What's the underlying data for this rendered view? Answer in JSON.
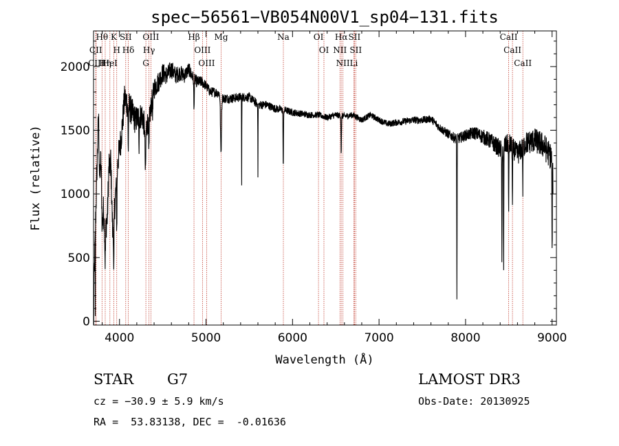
{
  "chart_data": {
    "type": "line",
    "title": "spec−56561−VB054N00V1_sp04−131.fits",
    "xlabel": "Wavelength (Å)",
    "ylabel": "Flux (relative)",
    "xlim": [
      3700,
      9050
    ],
    "ylim": [
      -30,
      2280
    ],
    "xticks": [
      4000,
      5000,
      6000,
      7000,
      8000,
      9000
    ],
    "xtick_labels": [
      "4000",
      "5000",
      "6000",
      "7000",
      "8000",
      "9000"
    ],
    "yticks": [
      0,
      500,
      1000,
      1500,
      2000
    ],
    "ytick_labels": [
      "0",
      "500",
      "1000",
      "1500",
      "2000"
    ],
    "continuum": [
      [
        3700,
        150
      ],
      [
        3730,
        950
      ],
      [
        3760,
        1700
      ],
      [
        3800,
        1050
      ],
      [
        3830,
        700
      ],
      [
        3860,
        820
      ],
      [
        3890,
        1500
      ],
      [
        3920,
        720
      ],
      [
        3950,
        950
      ],
      [
        3980,
        1250
      ],
      [
        4020,
        1450
      ],
      [
        4060,
        1750
      ],
      [
        4100,
        1700
      ],
      [
        4140,
        1650
      ],
      [
        4180,
        1580
      ],
      [
        4220,
        1600
      ],
      [
        4260,
        1620
      ],
      [
        4300,
        1500
      ],
      [
        4350,
        1620
      ],
      [
        4400,
        1830
      ],
      [
        4450,
        1880
      ],
      [
        4500,
        1950
      ],
      [
        4550,
        1930
      ],
      [
        4600,
        1980
      ],
      [
        4650,
        1930
      ],
      [
        4700,
        1950
      ],
      [
        4750,
        1930
      ],
      [
        4800,
        1980
      ],
      [
        4860,
        1900
      ],
      [
        4900,
        1880
      ],
      [
        4950,
        1880
      ],
      [
        5000,
        1850
      ],
      [
        5050,
        1800
      ],
      [
        5100,
        1800
      ],
      [
        5150,
        1790
      ],
      [
        5200,
        1750
      ],
      [
        5300,
        1750
      ],
      [
        5400,
        1760
      ],
      [
        5500,
        1760
      ],
      [
        5600,
        1700
      ],
      [
        5700,
        1700
      ],
      [
        5800,
        1670
      ],
      [
        5900,
        1660
      ],
      [
        6000,
        1640
      ],
      [
        6100,
        1630
      ],
      [
        6200,
        1620
      ],
      [
        6300,
        1620
      ],
      [
        6400,
        1600
      ],
      [
        6500,
        1620
      ],
      [
        6600,
        1610
      ],
      [
        6700,
        1620
      ],
      [
        6800,
        1580
      ],
      [
        6900,
        1620
      ],
      [
        7000,
        1580
      ],
      [
        7100,
        1550
      ],
      [
        7200,
        1560
      ],
      [
        7300,
        1570
      ],
      [
        7400,
        1580
      ],
      [
        7500,
        1580
      ],
      [
        7600,
        1590
      ],
      [
        7700,
        1520
      ],
      [
        7800,
        1470
      ],
      [
        7900,
        1430
      ],
      [
        8000,
        1460
      ],
      [
        8100,
        1480
      ],
      [
        8200,
        1450
      ],
      [
        8300,
        1410
      ],
      [
        8400,
        1350
      ],
      [
        8500,
        1400
      ],
      [
        8600,
        1310
      ],
      [
        8700,
        1400
      ],
      [
        8800,
        1420
      ],
      [
        8900,
        1380
      ],
      [
        8960,
        1320
      ],
      [
        9000,
        1280
      ],
      [
        9010,
        1100
      ]
    ],
    "noise": [
      [
        3700,
        120
      ],
      [
        4100,
        120
      ],
      [
        4500,
        80
      ],
      [
        5000,
        40
      ],
      [
        5600,
        35
      ],
      [
        6200,
        25
      ],
      [
        7000,
        25
      ],
      [
        7600,
        30
      ],
      [
        8000,
        45
      ],
      [
        8500,
        80
      ],
      [
        9010,
        110
      ]
    ],
    "absorption_features": [
      [
        3700,
        2,
        1000
      ],
      [
        3720,
        1,
        700
      ],
      [
        3770,
        10,
        400
      ],
      [
        3800,
        8,
        300
      ],
      [
        3835,
        5,
        250
      ],
      [
        3889,
        6,
        300
      ],
      [
        3934,
        4,
        500
      ],
      [
        3968,
        4,
        400
      ],
      [
        4101,
        4,
        350
      ],
      [
        4226,
        3,
        200
      ],
      [
        4300,
        6,
        350
      ],
      [
        4340,
        5,
        300
      ],
      [
        4384,
        3,
        150
      ],
      [
        4861,
        4,
        250
      ],
      [
        5173,
        8,
        450
      ],
      [
        5412,
        2,
        700
      ],
      [
        5600,
        2,
        550
      ],
      [
        5893,
        4,
        450
      ],
      [
        6563,
        4,
        300
      ],
      [
        7900,
        3,
        1250
      ],
      [
        8420,
        3,
        900
      ],
      [
        8440,
        3,
        1000
      ],
      [
        8498,
        3,
        600
      ],
      [
        8542,
        3,
        500
      ],
      [
        8662,
        3,
        350
      ],
      [
        9000,
        3,
        800
      ]
    ],
    "lines": [
      {
        "name": "Hθ",
        "wavelength": 3798
      },
      {
        "name": "CII",
        "wavelength": 3726
      },
      {
        "name": "CIII",
        "wavelength": 3730
      },
      {
        "name": "HeI",
        "wavelength": 3889
      },
      {
        "name": "Hη",
        "wavelength": 3835
      },
      {
        "name": "K",
        "wavelength": 3934
      },
      {
        "name": "H",
        "wavelength": 3968
      },
      {
        "name": "SII",
        "wavelength": 4072
      },
      {
        "name": "Hδ",
        "wavelength": 4102
      },
      {
        "name": "OIII",
        "wavelength": 4363
      },
      {
        "name": "Hγ",
        "wavelength": 4341
      },
      {
        "name": "G",
        "wavelength": 4305
      },
      {
        "name": "Hβ",
        "wavelength": 4861
      },
      {
        "name": "OIII",
        "wavelength": 4959
      },
      {
        "name": "OIII",
        "wavelength": 5007
      },
      {
        "name": "Mg",
        "wavelength": 5175
      },
      {
        "name": "Na",
        "wavelength": 5894
      },
      {
        "name": "OI",
        "wavelength": 6300
      },
      {
        "name": "OI",
        "wavelength": 6363
      },
      {
        "name": "Hα",
        "wavelength": 6563
      },
      {
        "name": "NII",
        "wavelength": 6548
      },
      {
        "name": "NII",
        "wavelength": 6583
      },
      {
        "name": "SII",
        "wavelength": 6716
      },
      {
        "name": "SII",
        "wavelength": 6731
      },
      {
        "name": "Li",
        "wavelength": 6708
      },
      {
        "name": "CaII",
        "wavelength": 8498
      },
      {
        "name": "CaII",
        "wavelength": 8542
      },
      {
        "name": "CaII",
        "wavelength": 8662
      }
    ]
  },
  "info": {
    "class": "STAR",
    "subclass": "G7",
    "survey": "LAMOST DR3",
    "redshift": "cz = −30.9 ± 5.9 km/s",
    "obs_date": "Obs-Date: 20130925",
    "coords": "RA =  53.83138, DEC =  -0.01636"
  },
  "colors": {
    "line_marker": "#c0392b",
    "spectrum": "#000000"
  }
}
